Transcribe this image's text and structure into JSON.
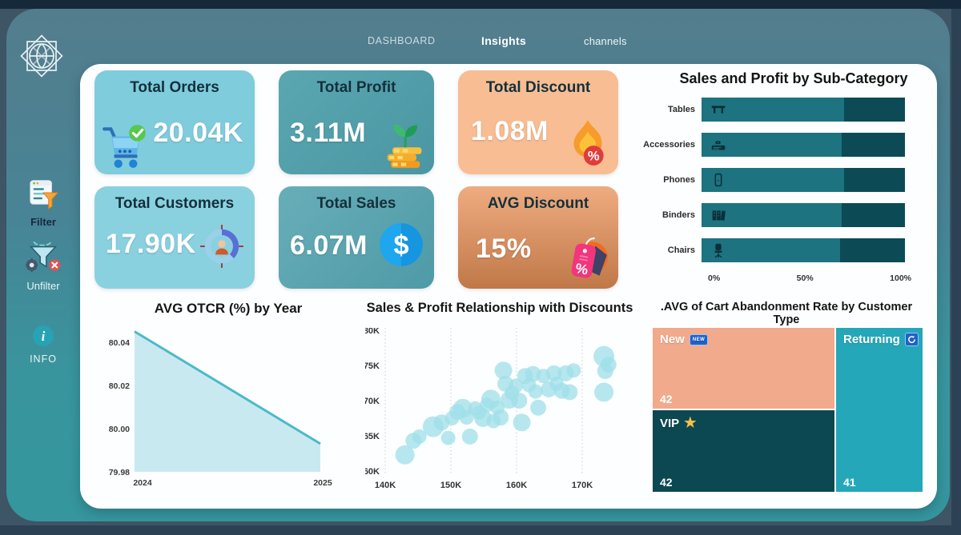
{
  "nav": {
    "items": [
      {
        "label": "DASHBOARD",
        "active": false
      },
      {
        "label": "Insights",
        "active": true
      },
      {
        "label": "channels",
        "active": false
      }
    ]
  },
  "sidebar": {
    "items": [
      {
        "label": "Filter",
        "icon": "filter-icon"
      },
      {
        "label": "Unfilter",
        "icon": "unfilter-icon"
      },
      {
        "label": "INFO",
        "icon": "info-icon"
      }
    ]
  },
  "kpis": [
    {
      "title": "Total Orders",
      "value": "20.04K",
      "icon": "cart-check-icon",
      "bg": "#7fccdd"
    },
    {
      "title": "Total Profit",
      "value": "3.11M",
      "icon": "money-plant-icon",
      "bg": "linear-gradient(135deg,#5aa7b2,#4a96a2)"
    },
    {
      "title": "Total Discount",
      "value": "1.08M",
      "icon": "flame-percent-icon",
      "bg": "#f8bd93"
    },
    {
      "title": "Total Customers",
      "value": "17.90K",
      "icon": "customer-target-icon",
      "bg": "#8ad1e0"
    },
    {
      "title": "Total Sales",
      "value": "6.07M",
      "icon": "dollar-coin-icon",
      "bg": "linear-gradient(135deg,#68aeb9,#4e9aa6)"
    },
    {
      "title": "AVG Discount",
      "value": "15%",
      "icon": "price-tags-icon",
      "bg": "linear-gradient(180deg,#efac80,#c07848)"
    }
  ],
  "colors": {
    "outer_slate": "#3d5565",
    "top_strip_navy": "#15293b",
    "frame_teal_top": "#537d8d",
    "frame_teal_bottom": "#35969e",
    "panel_white": "#fdfeff",
    "bar_sales": "#1d7380",
    "bar_profit": "#0c4a56",
    "area_fill": "#c9e9f1",
    "area_line": "#4cb9c9",
    "scatter_bubble": "#9fdfe8"
  },
  "chart_data": [
    {
      "type": "bar",
      "orientation": "horizontal",
      "stacked_percent": true,
      "title": "Sales and Profit by Sub-Category",
      "categories": [
        "Tables",
        "Accessories",
        "Phones",
        "Binders",
        "Chairs"
      ],
      "category_icons": [
        "table-icon",
        "keyboard-icon",
        "phone-icon",
        "binders-icon",
        "chair-icon"
      ],
      "series": [
        {
          "name": "Sales",
          "values": [
            70,
            69,
            70,
            69,
            68
          ]
        },
        {
          "name": "Profit",
          "values": [
            30,
            31,
            30,
            31,
            32
          ]
        }
      ],
      "x_ticks": [
        "0%",
        "50%",
        "100%"
      ],
      "xlim": [
        0,
        100
      ],
      "grid": false
    },
    {
      "type": "area",
      "title": "AVG  OTCR (%) by Year",
      "x": [
        2024,
        2025
      ],
      "y": [
        80.045,
        79.993
      ],
      "x_ticks": [
        "2024",
        "2025"
      ],
      "y_ticks": [
        80.04,
        80.02,
        80.0,
        79.98
      ],
      "ylim": [
        79.98,
        80.046
      ],
      "grid": false
    },
    {
      "type": "scatter",
      "title": "Sales & Profit Relationship with Discounts",
      "x_ticks": [
        "140K",
        "150K",
        "160K",
        "170K"
      ],
      "x_tick_values": [
        140,
        150,
        160,
        170
      ],
      "y_ticks": [
        "80K",
        "75K",
        "70K",
        "65K",
        "60K"
      ],
      "y_tick_values": [
        80,
        75,
        70,
        65,
        60
      ],
      "xlim": [
        138,
        176
      ],
      "ylim": [
        60,
        80
      ],
      "grid": "dotted-vertical",
      "points": [
        [
          143,
          62.3,
          12
        ],
        [
          144.3,
          64.3,
          10
        ],
        [
          145.2,
          64.9,
          9
        ],
        [
          147.3,
          66.3,
          13
        ],
        [
          148.6,
          66.9,
          10
        ],
        [
          149.6,
          64.7,
          9
        ],
        [
          150.2,
          67.5,
          9
        ],
        [
          151,
          68.4,
          10
        ],
        [
          151.8,
          68.9,
          12
        ],
        [
          152.4,
          67.6,
          9
        ],
        [
          152.9,
          64.9,
          10
        ],
        [
          153.7,
          68.9,
          9
        ],
        [
          154.3,
          68.3,
          9
        ],
        [
          154.9,
          67.5,
          11
        ],
        [
          155.5,
          69.4,
          9
        ],
        [
          156.1,
          70.2,
          12
        ],
        [
          156.5,
          67.1,
          9
        ],
        [
          157.1,
          69,
          9
        ],
        [
          157.6,
          67.6,
          10
        ],
        [
          158,
          74.3,
          11
        ],
        [
          158.3,
          72.4,
          10
        ],
        [
          158.9,
          70.1,
          11
        ],
        [
          159.3,
          71.1,
          9
        ],
        [
          159.9,
          72.1,
          9
        ],
        [
          160.4,
          70,
          10
        ],
        [
          160.8,
          66.9,
          11
        ],
        [
          161.3,
          73.5,
          10
        ],
        [
          161.9,
          72.2,
          9
        ],
        [
          162.5,
          73.8,
          10
        ],
        [
          162.9,
          71.3,
          9
        ],
        [
          163.3,
          69,
          10
        ],
        [
          164.1,
          73.5,
          9
        ],
        [
          164.9,
          71.6,
          10
        ],
        [
          165.7,
          73.9,
          10
        ],
        [
          166.1,
          72.4,
          9
        ],
        [
          166.9,
          71.4,
          10
        ],
        [
          167.5,
          73.9,
          10
        ],
        [
          168.1,
          71.2,
          10
        ],
        [
          168.7,
          74.3,
          9
        ],
        [
          173.3,
          76.3,
          13
        ],
        [
          173.5,
          74.2,
          10
        ],
        [
          173.3,
          71.2,
          12
        ],
        [
          174,
          75.1,
          10
        ]
      ]
    },
    {
      "type": "treemap",
      "title": ".AVG of Cart Abandonment Rate by Customer Type",
      "items": [
        {
          "label": "New",
          "value": "42",
          "color": "#f1aa8c",
          "icon": "new-badge-icon",
          "icon_label": "NEW"
        },
        {
          "label": "VIP",
          "value": "42",
          "color": "#0c4852",
          "icon": "star-icon",
          "icon_glyph": "★"
        },
        {
          "label": "Returning",
          "value": "41",
          "color": "#25a7ba",
          "icon": "refresh-icon"
        }
      ]
    }
  ]
}
